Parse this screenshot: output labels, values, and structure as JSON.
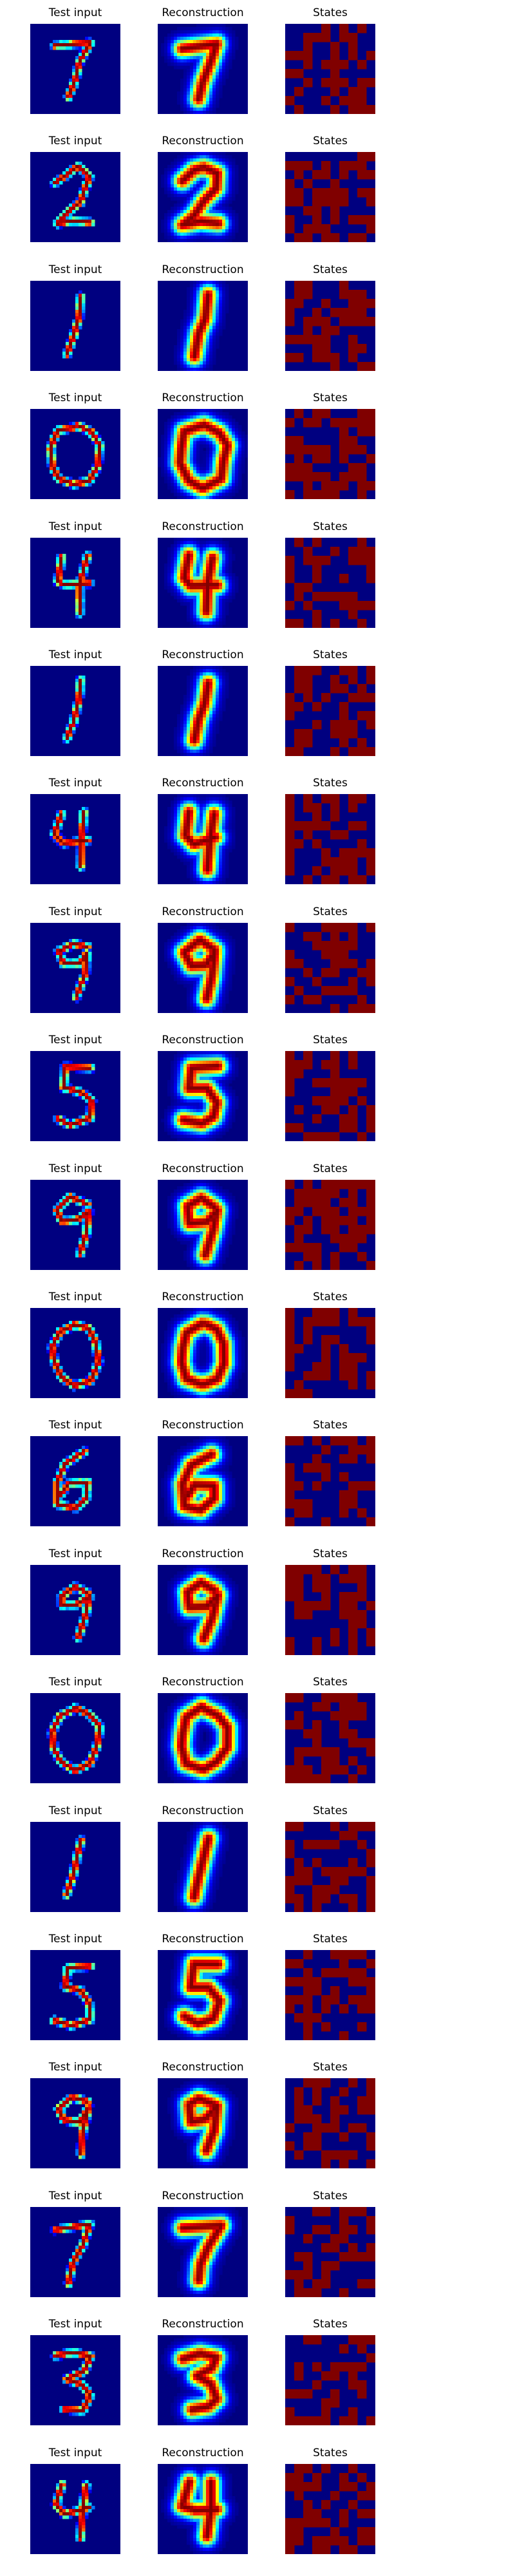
{
  "chart_data": {
    "type": "heatmap",
    "colormap": "jet",
    "columns": [
      {
        "key": "test_input",
        "title": "Test input"
      },
      {
        "key": "reconstruction",
        "title": "Reconstruction"
      },
      {
        "key": "states",
        "title": "States"
      }
    ],
    "rows": [
      {
        "digit": "7"
      },
      {
        "digit": "2"
      },
      {
        "digit": "1"
      },
      {
        "digit": "0"
      },
      {
        "digit": "4"
      },
      {
        "digit": "1"
      },
      {
        "digit": "4"
      },
      {
        "digit": "9"
      },
      {
        "digit": "5"
      },
      {
        "digit": "9"
      },
      {
        "digit": "0"
      },
      {
        "digit": "6"
      },
      {
        "digit": "9"
      },
      {
        "digit": "0"
      },
      {
        "digit": "1"
      },
      {
        "digit": "5"
      },
      {
        "digit": "9"
      },
      {
        "digit": "7"
      },
      {
        "digit": "3"
      },
      {
        "digit": "4"
      }
    ],
    "states_grid": 10,
    "input_grid": 28,
    "grid": false,
    "axes_visible": false
  }
}
